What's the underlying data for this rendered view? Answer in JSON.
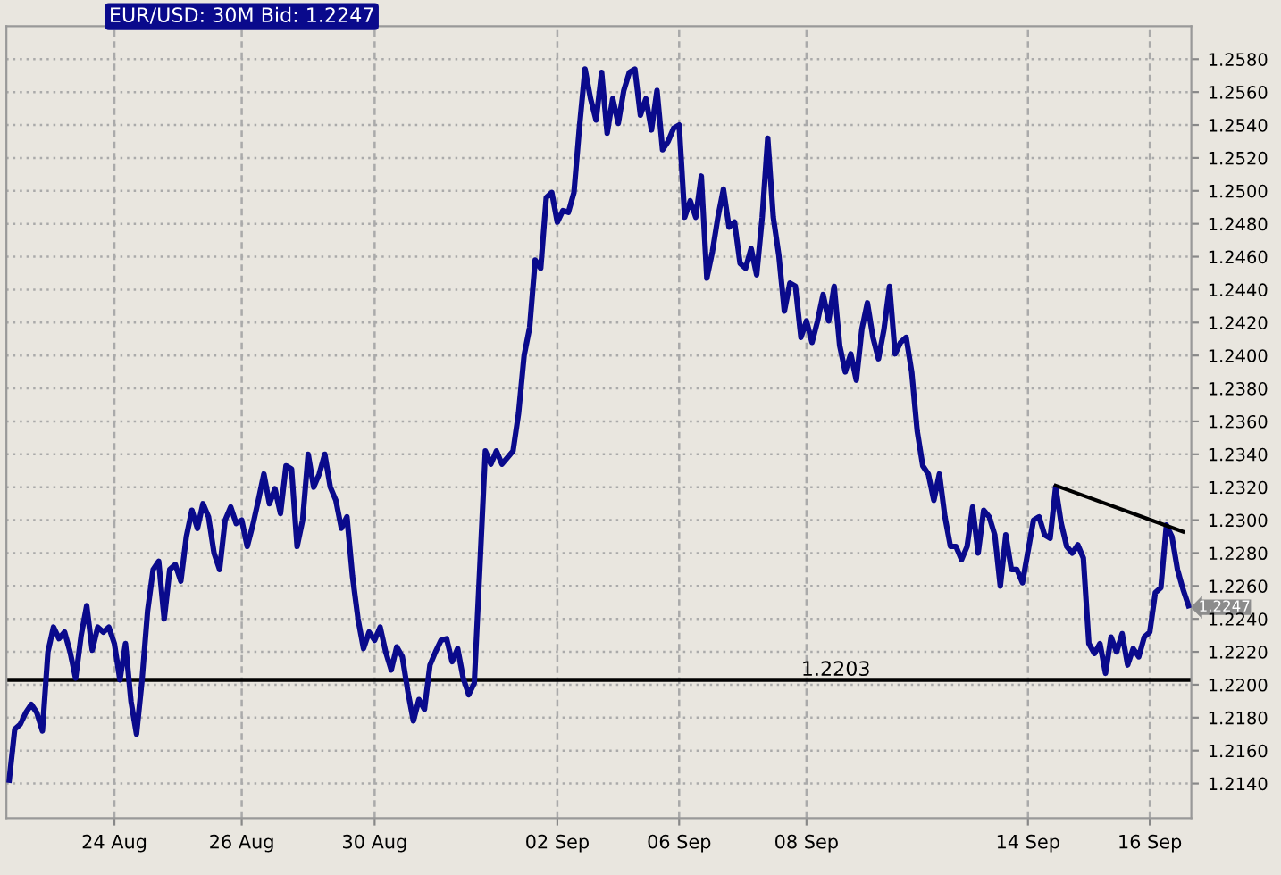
{
  "chart_data": {
    "type": "line",
    "title": "EUR/USD: 30M Bid: 1.2247",
    "categories": [
      null,
      null,
      null,
      null,
      null,
      null,
      null,
      null,
      null,
      null,
      null,
      null,
      null,
      null,
      null,
      null,
      null,
      null,
      null,
      "24 Aug",
      null,
      null,
      null,
      null,
      null,
      null,
      null,
      null,
      null,
      null,
      null,
      null,
      null,
      null,
      null,
      null,
      null,
      null,
      null,
      null,
      null,
      null,
      "26 Aug",
      null,
      null,
      null,
      null,
      null,
      null,
      null,
      null,
      null,
      null,
      null,
      null,
      null,
      null,
      null,
      null,
      null,
      null,
      null,
      null,
      null,
      null,
      null,
      "30 Aug",
      null,
      null,
      null,
      null,
      null,
      null,
      null,
      null,
      null,
      null,
      null,
      null,
      null,
      null,
      null,
      null,
      null,
      null,
      null,
      null,
      null,
      null,
      null,
      null,
      null,
      null,
      null,
      null,
      null,
      null,
      null,
      null,
      "02 Sep",
      null,
      null,
      null,
      null,
      null,
      null,
      null,
      null,
      null,
      null,
      null,
      null,
      null,
      null,
      null,
      null,
      null,
      null,
      null,
      null,
      null,
      "06 Sep",
      null,
      null,
      null,
      null,
      null,
      null,
      null,
      null,
      null,
      null,
      null,
      null,
      null,
      null,
      null,
      null,
      null,
      null,
      null,
      null,
      null,
      null,
      "08 Sep",
      null,
      null,
      null,
      null,
      null,
      null,
      null,
      null,
      null,
      null,
      null,
      null,
      null,
      null,
      null,
      null,
      null,
      null,
      null,
      null,
      null,
      null,
      null,
      null,
      null,
      null,
      null,
      null,
      null,
      null,
      null,
      null,
      null,
      null,
      null,
      null,
      null,
      null,
      null,
      "14 Sep",
      null,
      null,
      null,
      null,
      null,
      null,
      null,
      null,
      null,
      null,
      null,
      null,
      null,
      null,
      null,
      null,
      null,
      null,
      null,
      null,
      null,
      "16 Sep",
      null,
      null,
      null,
      null,
      null,
      null,
      null
    ],
    "ylim": [
      1.2119,
      1.26
    ],
    "yticks": [
      {
        "value": 1.214,
        "label": "1.2140"
      },
      {
        "value": 1.216,
        "label": "1.2160"
      },
      {
        "value": 1.218,
        "label": "1.2180"
      },
      {
        "value": 1.22,
        "label": "1.2200"
      },
      {
        "value": 1.222,
        "label": "1.2220"
      },
      {
        "value": 1.224,
        "label": "1.2240"
      },
      {
        "value": 1.226,
        "label": "1.2260"
      },
      {
        "value": 1.228,
        "label": "1.2280"
      },
      {
        "value": 1.23,
        "label": "1.2300"
      },
      {
        "value": 1.232,
        "label": "1.2320"
      },
      {
        "value": 1.234,
        "label": "1.2340"
      },
      {
        "value": 1.236,
        "label": "1.2360"
      },
      {
        "value": 1.238,
        "label": "1.2380"
      },
      {
        "value": 1.24,
        "label": "1.2400"
      },
      {
        "value": 1.242,
        "label": "1.2420"
      },
      {
        "value": 1.244,
        "label": "1.2440"
      },
      {
        "value": 1.246,
        "label": "1.2460"
      },
      {
        "value": 1.248,
        "label": "1.2480"
      },
      {
        "value": 1.25,
        "label": "1.2500"
      },
      {
        "value": 1.252,
        "label": "1.2520"
      },
      {
        "value": 1.254,
        "label": "1.2540"
      },
      {
        "value": 1.256,
        "label": "1.2560"
      },
      {
        "value": 1.258,
        "label": "1.2580"
      }
    ],
    "grid": true,
    "marker": "none",
    "line_style": "solid",
    "series": [
      {
        "color": "#0a0a8c",
        "values": [
          1.2142,
          1.2173,
          1.2176,
          1.2183,
          1.2188,
          1.2183,
          1.2172,
          1.222,
          1.2235,
          1.2228,
          1.2232,
          1.222,
          1.2204,
          1.223,
          1.2248,
          1.2221,
          1.2235,
          1.2232,
          1.2235,
          1.2225,
          1.2203,
          1.2225,
          1.219,
          1.217,
          1.2203,
          1.2245,
          1.227,
          1.2275,
          1.224,
          1.227,
          1.2273,
          1.2263,
          1.229,
          1.2306,
          1.2295,
          1.231,
          1.2302,
          1.228,
          1.227,
          1.23,
          1.2308,
          1.2298,
          1.23,
          1.2284,
          1.2297,
          1.2312,
          1.2328,
          1.231,
          1.2319,
          1.2304,
          1.2333,
          1.2331,
          1.2284,
          1.23,
          1.234,
          1.232,
          1.2328,
          1.234,
          1.232,
          1.2312,
          1.2295,
          1.2302,
          1.2266,
          1.224,
          1.2222,
          1.2232,
          1.2227,
          1.2235,
          1.222,
          1.2209,
          1.2223,
          1.2217,
          1.2196,
          1.2178,
          1.2191,
          1.2185,
          1.2212,
          1.222,
          1.2227,
          1.2228,
          1.2214,
          1.2222,
          1.2204,
          1.2194,
          1.2201,
          1.2271,
          1.2342,
          1.2334,
          1.2342,
          1.2334,
          1.2338,
          1.2342,
          1.2365,
          1.24,
          1.2417,
          1.2458,
          1.2453,
          1.2496,
          1.2499,
          1.2481,
          1.2488,
          1.2487,
          1.2499,
          1.2539,
          1.2574,
          1.2556,
          1.2543,
          1.2572,
          1.2535,
          1.2556,
          1.2541,
          1.2561,
          1.2572,
          1.2574,
          1.2546,
          1.2556,
          1.2537,
          1.2561,
          1.2525,
          1.253,
          1.2538,
          1.254,
          1.2484,
          1.2494,
          1.2484,
          1.2509,
          1.2447,
          1.2463,
          1.2484,
          1.2501,
          1.2478,
          1.2481,
          1.2456,
          1.2453,
          1.2465,
          1.2449,
          1.2484,
          1.2532,
          1.2484,
          1.2461,
          1.2427,
          1.2444,
          1.2442,
          1.2411,
          1.2421,
          1.2408,
          1.2421,
          1.2437,
          1.2421,
          1.2442,
          1.2406,
          1.239,
          1.2401,
          1.2385,
          1.2416,
          1.2432,
          1.2411,
          1.2398,
          1.2416,
          1.2442,
          1.2401,
          1.2408,
          1.2411,
          1.239,
          1.2354,
          1.2333,
          1.2328,
          1.2312,
          1.2328,
          1.2302,
          1.2284,
          1.2284,
          1.2276,
          1.2284,
          1.2308,
          1.228,
          1.2306,
          1.2302,
          1.2291,
          1.226,
          1.2291,
          1.227,
          1.227,
          1.2262,
          1.2281,
          1.23,
          1.2302,
          1.2291,
          1.2289,
          1.232,
          1.2298,
          1.2284,
          1.228,
          1.2285,
          1.2277,
          1.2225,
          1.2219,
          1.2225,
          1.2207,
          1.2229,
          1.222,
          1.2231,
          1.2212,
          1.2222,
          1.2217,
          1.2229,
          1.2232,
          1.2256,
          1.2259,
          1.2297,
          1.229,
          1.227,
          1.2258,
          1.2248
        ]
      },
      {
        "color": "#000000",
        "values": [
          null,
          null,
          null,
          null,
          null,
          null,
          null,
          null,
          null,
          null,
          null,
          null,
          null,
          null,
          null,
          null,
          null,
          null,
          null,
          null,
          null,
          null,
          null,
          null,
          null,
          null,
          null,
          null,
          null,
          null,
          null,
          null,
          null,
          null,
          null,
          null,
          null,
          null,
          null,
          null,
          null,
          null,
          null,
          null,
          null,
          null,
          null,
          null,
          null,
          null,
          null,
          null,
          null,
          null,
          null,
          null,
          null,
          null,
          null,
          null,
          null,
          null,
          null,
          null,
          null,
          null,
          null,
          null,
          null,
          null,
          null,
          null,
          null,
          null,
          null,
          null,
          null,
          null,
          null,
          null,
          null,
          null,
          null,
          null,
          null,
          null,
          null,
          null,
          null,
          null,
          null,
          null,
          null,
          null,
          null,
          null,
          null,
          null,
          null,
          null,
          null,
          null,
          null,
          null,
          null,
          null,
          null,
          null,
          null,
          null,
          null,
          null,
          null,
          null,
          null,
          null,
          null,
          null,
          null,
          null,
          null,
          null,
          null,
          null,
          null,
          null,
          null,
          null,
          null,
          null,
          null,
          null,
          null,
          null,
          null,
          null,
          null,
          null,
          null,
          null,
          null,
          null,
          null,
          null,
          null,
          null,
          null,
          null,
          null,
          null,
          null,
          null,
          null,
          null,
          null,
          null,
          null,
          null,
          null,
          null,
          null,
          null,
          null,
          null,
          null,
          null,
          null,
          null,
          null,
          null,
          null,
          null,
          null,
          null,
          null,
          null,
          null,
          null,
          null,
          null,
          null,
          null,
          null,
          null,
          null,
          null,
          null,
          null,
          null,
          1.2321,
          null,
          null,
          null,
          null,
          null,
          null,
          null,
          null,
          null,
          null,
          null,
          null,
          null,
          null,
          null,
          null,
          null,
          null,
          null,
          null,
          null,
          null,
          1.2293,
          null
        ]
      }
    ],
    "ref_lines": [
      {
        "axis": "y",
        "value": 1.2203,
        "label": "1.2203",
        "color": "#000000",
        "line_style": "solid"
      }
    ],
    "annotations": [
      "1.2247"
    ]
  }
}
